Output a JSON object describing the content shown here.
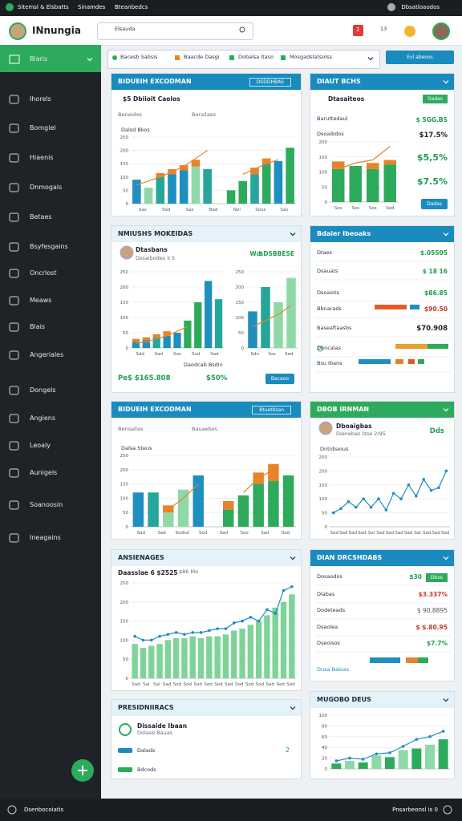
{
  "topbar": {
    "items": [
      "Sitemsl & Elsbatts",
      "Sinamdes",
      "Bteanbedcs"
    ],
    "user": "Dbsatloaodos"
  },
  "header": {
    "brand": "INnungia",
    "search": "Elsauda",
    "badge": "2",
    "count": "13"
  },
  "sidebar": {
    "items": [
      "Blaris",
      "Ihorels",
      "Bomgiel",
      "Hiaenis",
      "Dnmogals",
      "Betaes",
      "Bsyfesgains",
      "Oncrlost",
      "Meaws",
      "Blais",
      "Angeriales",
      "Dongels",
      "Angiens",
      "Leoaly",
      "Aunigels",
      "Soanoosin",
      "Ineagains"
    ]
  },
  "filters": {
    "chips": [
      "Bacesb Sabsis",
      "Baacde Dasgi",
      "Dobalsa Itaso",
      "Mosgadslatsolss"
    ],
    "button": "Evl abeoos"
  },
  "cards": [
    {
      "title": "BIDUEIH EXCODMAN",
      "style": "blue",
      "tag": "DSDDHBAS",
      "subtitle": "$5 Dbiioit Caolos",
      "tabs": [
        "Beneidos",
        "Berailaes"
      ],
      "legend": "Dalsd Bkos",
      "chart": {
        "ylim": [
          0,
          250
        ],
        "yticks": [
          0,
          50,
          100,
          150,
          200,
          250
        ],
        "xlabels": [
          "Sas",
          "Sod",
          "Sas",
          "Bad",
          "Nol",
          "Soos",
          "Sas"
        ],
        "bars": [
          90,
          60,
          100,
          110,
          125,
          140,
          130,
          null,
          50,
          85,
          110,
          150,
          160,
          210
        ],
        "tops": [
          null,
          null,
          15,
          20,
          20,
          25,
          null,
          null,
          null,
          null,
          25,
          20,
          null,
          null
        ],
        "top_color": "#e8832a",
        "colors": [
          "#1f8fbf",
          "#8fd9a8",
          "#26a69a",
          "#1f8fbf",
          "#1f8fbf",
          "#8fd9a8",
          "#26a69a",
          null,
          "#2eaa5c",
          "#2eaa5c",
          "#26a69a",
          "#2eaa5c",
          "#1f8fbf",
          "#2eaa5c"
        ],
        "line": [
          70,
          85,
          100,
          120,
          140,
          170,
          200,
          null,
          null,
          110,
          130,
          150,
          165,
          null
        ],
        "line_color": "#e8832a"
      }
    },
    {
      "title": "DIAUT BCHS",
      "style": "blue",
      "subtitle": "Dtasaiteos",
      "button": "Dadas",
      "rows": [
        {
          "label": "Baruttedaul",
          "value": "$ 5GG.BS"
        },
        {
          "label": "Dsoaibdos",
          "value": "$17.5%"
        }
      ],
      "kpis": [
        "$5,5%",
        "$7.5%"
      ],
      "link": "Dadas",
      "chart": {
        "ylim": [
          0,
          200
        ],
        "yticks": [
          0,
          50,
          100,
          150,
          200
        ],
        "xlabels": [
          "Sos",
          "Sos",
          "Sos",
          "Sed"
        ],
        "bars": [
          110,
          120,
          110,
          125
        ],
        "tops": [
          25,
          null,
          20,
          15
        ],
        "top_color": "#e8832a",
        "color": "#2eaa5c",
        "line": [
          110,
          130,
          140,
          185
        ],
        "line_color": "#e8832a"
      }
    },
    {
      "title": "NMIUSHS MOKEIDAS",
      "style": "light",
      "person": "Dtasbans",
      "person_sub": "Dssaibodes Ii 5",
      "tag": "Wd",
      "value": "$DSBBESE",
      "chart": {
        "ylim": [
          0,
          250
        ],
        "yticks": [
          0,
          50,
          100,
          150,
          200,
          250
        ],
        "xlabels": [
          "Sdd",
          "Sad",
          "Sas",
          "Sod",
          "Sad"
        ],
        "bars": [
          20,
          25,
          35,
          40,
          50,
          90,
          150,
          220,
          160
        ],
        "tops": [
          10,
          10,
          10,
          15,
          null,
          null,
          null,
          null,
          null
        ],
        "top_color": "#e8832a",
        "colors": [
          "#1f8fbf",
          "#1f8fbf",
          "#26a69a",
          "#1f8fbf",
          "#1f8fbf",
          "#2eaa5c",
          "#2eaa5c",
          "#1f8fbf",
          "#26a69a"
        ],
        "line": [
          15,
          20,
          30,
          40,
          55,
          70,
          null,
          null,
          null
        ],
        "line_color": "#e8832a"
      },
      "chart2": {
        "ylim": [
          0,
          250
        ],
        "yticks": [
          0,
          50,
          100,
          150,
          200,
          250
        ],
        "xlabels": [
          "Sdo",
          "Sss",
          "Sed"
        ],
        "bars": [
          120,
          200,
          150,
          230
        ],
        "colors": [
          "#1f8fbf",
          "#26a69a",
          "#8fd9a8",
          "#8fd9a8"
        ],
        "line": [
          70,
          90,
          110,
          140
        ],
        "line_color": "#e8832a"
      },
      "caption": "Daodcab Bsdin",
      "total": "Pe$ $165.808",
      "pct": "$50%",
      "button": "Bacaoo"
    },
    {
      "title": "Bdaier Ibeoaks",
      "style": "blue",
      "rows": [
        {
          "label": "Dtaes",
          "value": "$.05505"
        },
        {
          "label": "Dsauats",
          "value": "$ 18 16"
        },
        {
          "label": "Dsoaiots",
          "value": "$86.85"
        },
        {
          "label": "Bbnarads",
          "value": "$90.50"
        },
        {
          "label": "Baseaftaasbs",
          "value": "$70.908"
        },
        {
          "label": "Dbncalas"
        },
        {
          "label": "Bsu Ibans"
        }
      ]
    },
    {
      "title": "BIDUEIH EXCODMAN",
      "style": "blue",
      "tag": "Btuetbsan",
      "tabs": [
        "Bensaites",
        "Bauaebes"
      ],
      "legend": "Dalsa Steus",
      "chart": {
        "ylim": [
          0,
          250
        ],
        "yticks": [
          0,
          50,
          100,
          150,
          200,
          250
        ],
        "xlabels": [
          "Sad",
          "Sad",
          "Sodtal",
          "Sod",
          "Sad",
          "Soo",
          "Sad",
          "Sod"
        ],
        "bars": [
          120,
          120,
          50,
          130,
          180,
          null,
          60,
          110,
          150,
          160,
          180
        ],
        "tops": [
          null,
          null,
          25,
          null,
          null,
          null,
          30,
          null,
          40,
          60,
          null
        ],
        "top_color": "#e8832a",
        "colors": [
          "#1f8fbf",
          "#26a69a",
          "#8fd9a8",
          "#8fd9a8",
          "#1f8fbf",
          null,
          "#2eaa5c",
          "#2eaa5c",
          "#2eaa5c",
          "#2eaa5c",
          "#2eaa5c"
        ],
        "line": [
          null,
          null,
          60,
          100,
          150,
          null,
          null,
          120,
          170,
          200,
          null
        ],
        "line_color": "#e8832a"
      }
    },
    {
      "title": "DBOB IRNMAN",
      "style": "green",
      "person": "Dboaigbas",
      "person_sub": "Dienebas Izse 2/95",
      "tag": "Dds",
      "legend": "Dntnbaous",
      "chart": {
        "ylim": [
          0,
          250
        ],
        "yticks": [
          0,
          50,
          100,
          150,
          200,
          250
        ],
        "xlabels": [
          "Sad",
          "Sad",
          "Sad",
          "Sad",
          "Sol",
          "Sad",
          "Sad",
          "Sad",
          "Sad",
          "Sal",
          "Sad",
          "Sad",
          "Sad"
        ],
        "line": [
          50,
          65,
          90,
          70,
          100,
          70,
          100,
          60,
          120,
          100,
          150,
          110,
          170,
          130,
          140,
          200
        ],
        "line_color": "#1f8fbf",
        "dots": true
      }
    },
    {
      "title": "ANSIENAGES",
      "style": "light",
      "subtitle": "Daasslae 6 $2525",
      "note": "$86 Mo",
      "chart": {
        "ylim": [
          0,
          250
        ],
        "yticks": [
          0,
          50,
          100,
          150,
          200,
          250
        ],
        "xlabels": [
          "Sad",
          "Sal",
          "Sal",
          "Sad",
          "Sod",
          "Sod",
          "Sod",
          "Sed",
          "Sod",
          "Sad",
          "Sod",
          "Sod",
          "Sod",
          "Sad",
          "Sed",
          "Sod"
        ],
        "bars": [
          90,
          80,
          85,
          90,
          100,
          105,
          105,
          110,
          105,
          110,
          110,
          115,
          125,
          130,
          140,
          150,
          165,
          185,
          200,
          220
        ],
        "color": "#7fd39a",
        "line": [
          110,
          100,
          100,
          110,
          115,
          120,
          115,
          120,
          120,
          125,
          130,
          130,
          145,
          150,
          160,
          150,
          180,
          170,
          230,
          240
        ],
        "line_color": "#1f8fbf",
        "dots": true
      }
    },
    {
      "title": "DIAN DRCSHDABS",
      "style": "blue",
      "badge": "Dbos",
      "rows": [
        {
          "label": "Dosaodos",
          "value": "$30"
        },
        {
          "label": "Dlabas",
          "value": "$3.337%"
        },
        {
          "label": "Dodeteads",
          "value": "$ 90.8895"
        },
        {
          "label": "Dsaolea",
          "value": "$ $.80.95"
        },
        {
          "label": "Dseoisos",
          "value": "$7.7%"
        }
      ],
      "link": "Dusa Baloas"
    },
    {
      "title": "PRESIDNIIRACS",
      "style": "light",
      "rows": [
        {
          "label": "Dissaide Ibaan",
          "sub": "Dolase Bauas"
        },
        {
          "label": "Dalads",
          "value": "2"
        },
        {
          "label": "Bdcods"
        }
      ]
    },
    {
      "title": "MUGOBO DEUS",
      "style": "light",
      "chart": {
        "ylim": [
          0,
          100
        ],
        "yticks": [
          0,
          20,
          40,
          60,
          80,
          100
        ],
        "bars": [
          10,
          15,
          12,
          25,
          22,
          35,
          38,
          45,
          55
        ],
        "colors": [
          "#2eaa5c",
          "#8fd9a8",
          "#2eaa5c",
          "#8fd9a8",
          "#2eaa5c",
          "#8fd9a8",
          "#2eaa5c",
          "#8fd9a8",
          "#2eaa5c"
        ],
        "line": [
          15,
          20,
          18,
          28,
          30,
          42,
          55,
          60,
          70
        ],
        "line_color": "#1f8fbf",
        "dots": true
      }
    }
  ],
  "footer": {
    "left": "Dsenbocoiatis",
    "right": "Pnsarbeonsl is 0"
  }
}
